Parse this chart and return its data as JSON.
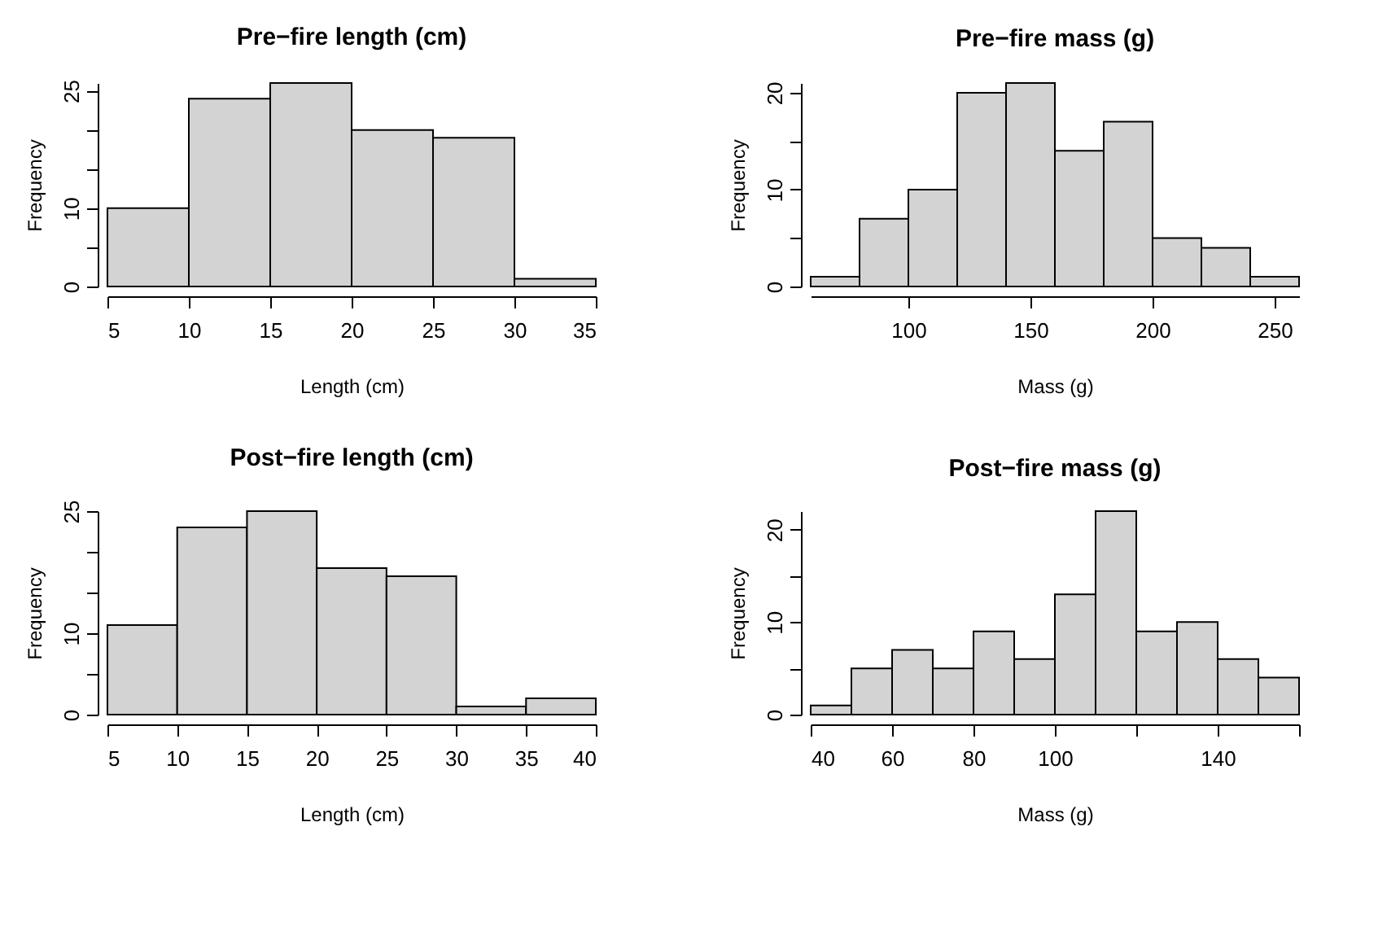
{
  "chart_data": [
    {
      "type": "histogram",
      "title": "Pre−fire length (cm)",
      "xlabel": "Length (cm)",
      "ylabel": "Frequency",
      "color": "#d3d3d3",
      "bins": [
        5,
        10,
        15,
        20,
        25,
        30,
        35
      ],
      "values": [
        10,
        24,
        26,
        20,
        19,
        1
      ],
      "xlim": [
        5,
        35
      ],
      "xticks": [
        5,
        10,
        15,
        20,
        25,
        30,
        35
      ],
      "ylim": [
        0,
        26
      ],
      "yticks": [
        0,
        {
          "value": 5,
          "label": null
        },
        10,
        {
          "value": 15,
          "label": null
        },
        {
          "value": 20,
          "label": null
        },
        25
      ]
    },
    {
      "type": "histogram",
      "title": "Pre−fire mass (g)",
      "xlabel": "Mass (g)",
      "ylabel": "Frequency",
      "color": "#d3d3d3",
      "bins": [
        60,
        80,
        100,
        120,
        140,
        160,
        180,
        200,
        220,
        240,
        260
      ],
      "values": [
        1,
        7,
        10,
        20,
        21,
        14,
        17,
        5,
        4,
        1
      ],
      "xlim": [
        60,
        260
      ],
      "xticks": [
        100,
        150,
        200,
        250
      ],
      "ylim": [
        0,
        21
      ],
      "yticks": [
        0,
        {
          "value": 5,
          "label": null
        },
        10,
        {
          "value": 15,
          "label": null
        },
        20
      ]
    },
    {
      "type": "histogram",
      "title": "Post−fire length (cm)",
      "xlabel": "Length (cm)",
      "ylabel": "Frequency",
      "color": "#d3d3d3",
      "bins": [
        5,
        10,
        15,
        20,
        25,
        30,
        35,
        40
      ],
      "values": [
        11,
        23,
        25,
        18,
        17,
        1,
        2
      ],
      "xlim": [
        5,
        40
      ],
      "xticks": [
        5,
        10,
        15,
        20,
        25,
        30,
        35,
        40
      ],
      "ylim": [
        0,
        25
      ],
      "yticks": [
        0,
        {
          "value": 5,
          "label": null
        },
        10,
        {
          "value": 15,
          "label": null
        },
        {
          "value": 20,
          "label": null
        },
        25
      ]
    },
    {
      "type": "histogram",
      "title": "Post−fire mass (g)",
      "xlabel": "Mass (g)",
      "ylabel": "Frequency",
      "color": "#d3d3d3",
      "bins": [
        40,
        50,
        60,
        70,
        80,
        90,
        100,
        110,
        120,
        130,
        140,
        150,
        160
      ],
      "values": [
        1,
        5,
        7,
        5,
        9,
        6,
        13,
        22,
        9,
        10,
        6,
        4
      ],
      "xlim": [
        40,
        160
      ],
      "xticks": [
        40,
        60,
        80,
        100,
        {
          "value": 120,
          "label": null
        },
        140,
        {
          "value": 160,
          "label": null
        }
      ],
      "ylim": [
        0,
        22
      ],
      "yticks": [
        0,
        {
          "value": 5,
          "label": null
        },
        10,
        {
          "value": 15,
          "label": null
        },
        20
      ]
    }
  ]
}
